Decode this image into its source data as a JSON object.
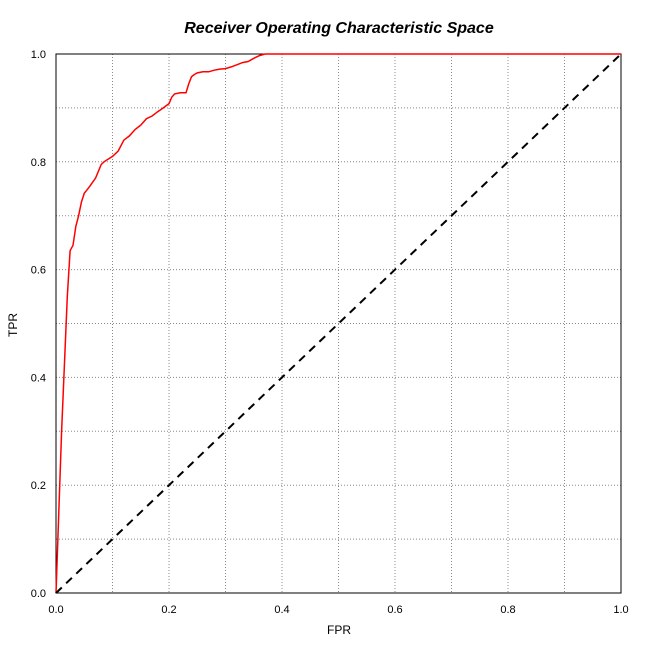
{
  "chart_data": {
    "type": "line",
    "title": "Receiver Operating Characteristic Space",
    "xlabel": "FPR",
    "ylabel": "TPR",
    "xlim": [
      0,
      1
    ],
    "ylim": [
      0,
      1
    ],
    "xticks": [
      "0.0",
      "0.2",
      "0.4",
      "0.6",
      "0.8",
      "1.0"
    ],
    "yticks": [
      "0.0",
      "0.2",
      "0.4",
      "0.6",
      "0.8",
      "1.0"
    ],
    "grid": true,
    "series": [
      {
        "color": "#ff0000",
        "style": "solid",
        "x": [
          0.0,
          0.01,
          0.02,
          0.025,
          0.03,
          0.035,
          0.04,
          0.045,
          0.05,
          0.055,
          0.06,
          0.07,
          0.08,
          0.085,
          0.1,
          0.11,
          0.12,
          0.13,
          0.14,
          0.15,
          0.16,
          0.17,
          0.18,
          0.19,
          0.2,
          0.205,
          0.21,
          0.22,
          0.23,
          0.235,
          0.24,
          0.245,
          0.25,
          0.26,
          0.27,
          0.28,
          0.29,
          0.3,
          0.31,
          0.32,
          0.33,
          0.34,
          0.35,
          0.36,
          0.37,
          0.38,
          0.39,
          0.4,
          0.5,
          0.6,
          0.7,
          0.8,
          0.9,
          1.0
        ],
        "y": [
          0.0,
          0.3,
          0.55,
          0.635,
          0.645,
          0.68,
          0.7,
          0.725,
          0.742,
          0.748,
          0.755,
          0.77,
          0.795,
          0.8,
          0.81,
          0.82,
          0.84,
          0.848,
          0.86,
          0.868,
          0.88,
          0.885,
          0.893,
          0.9,
          0.908,
          0.92,
          0.926,
          0.928,
          0.928,
          0.945,
          0.958,
          0.962,
          0.965,
          0.967,
          0.967,
          0.97,
          0.972,
          0.973,
          0.976,
          0.98,
          0.984,
          0.986,
          0.992,
          0.997,
          1.0,
          1.0,
          1.0,
          1.0,
          1.0,
          1.0,
          1.0,
          1.0,
          1.0,
          1.0
        ]
      },
      {
        "color": "#000000",
        "style": "dashed",
        "x": [
          0,
          1
        ],
        "y": [
          0,
          1
        ]
      }
    ]
  }
}
